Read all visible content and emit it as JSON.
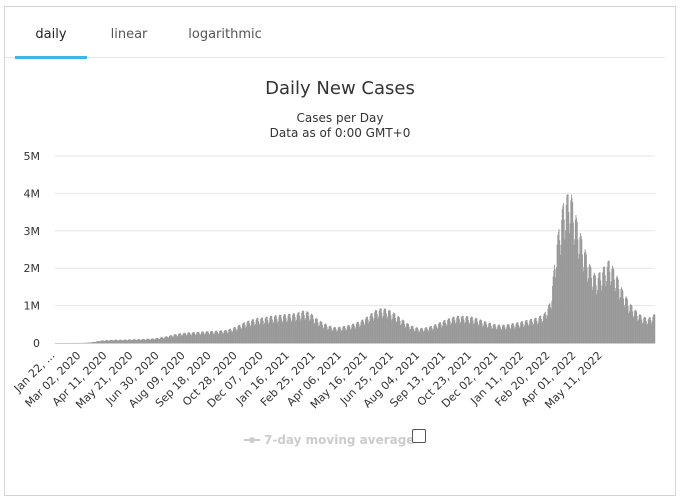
{
  "tabs": [
    {
      "label": "daily",
      "active": true
    },
    {
      "label": "linear",
      "active": false
    },
    {
      "label": "logarithmic",
      "active": false
    }
  ],
  "chart_data": {
    "type": "bar",
    "title": "Daily New Cases",
    "subtitle_lines": [
      "Cases per Day",
      "Data as of 0:00 GMT+0"
    ],
    "ylim": [
      0,
      5000000
    ],
    "y_ticks": [
      {
        "value": 0,
        "label": "0"
      },
      {
        "value": 1000000,
        "label": "1M"
      },
      {
        "value": 2000000,
        "label": "2M"
      },
      {
        "value": 3000000,
        "label": "3M"
      },
      {
        "value": 4000000,
        "label": "4M"
      },
      {
        "value": 5000000,
        "label": "5M"
      }
    ],
    "x_tick_labels": [
      "Jan 22, ...",
      "Mar 02, 2020",
      "Apr 11, 2020",
      "May 21, 2020",
      "Jun 30, 2020",
      "Aug 09, 2020",
      "Sep 18, 2020",
      "Oct 28, 2020",
      "Dec 07, 2020",
      "Jan 16, 2021",
      "Feb 25, 2021",
      "Apr 06, 2021",
      "May 16, 2021",
      "Jun 25, 2021",
      "Aug 04, 2021",
      "Sep 13, 2021",
      "Oct 23, 2021",
      "Dec 02, 2021",
      "Jan 11, 2022",
      "Feb 20, 2022",
      "Apr 01, 2022",
      "May 11, 2022"
    ],
    "period_days": 40,
    "approx_daily_cases_every_10_days": [
      0,
      0,
      0,
      2000,
      2000,
      8000,
      30000,
      60000,
      70000,
      80000,
      80000,
      85000,
      90000,
      95000,
      100000,
      110000,
      130000,
      160000,
      200000,
      230000,
      250000,
      260000,
      270000,
      280000,
      290000,
      300000,
      310000,
      350000,
      420000,
      500000,
      560000,
      600000,
      620000,
      650000,
      670000,
      690000,
      700000,
      720000,
      780000,
      750000,
      600000,
      500000,
      420000,
      380000,
      400000,
      430000,
      480000,
      550000,
      650000,
      780000,
      840000,
      820000,
      720000,
      600000,
      480000,
      390000,
      360000,
      380000,
      430000,
      500000,
      570000,
      630000,
      660000,
      650000,
      630000,
      580000,
      520000,
      470000,
      440000,
      440000,
      470000,
      500000,
      540000,
      580000,
      620000,
      700000,
      1000000,
      2500000,
      3400000,
      3700000,
      3000000,
      2400000,
      1900000,
      1600000,
      1800000,
      2000000,
      1700000,
      1300000,
      1000000,
      800000,
      650000,
      600000,
      700000
    ],
    "legend": [
      {
        "label": "7-day moving average",
        "color": "#cccccc"
      }
    ],
    "bar_color": "#999999"
  }
}
